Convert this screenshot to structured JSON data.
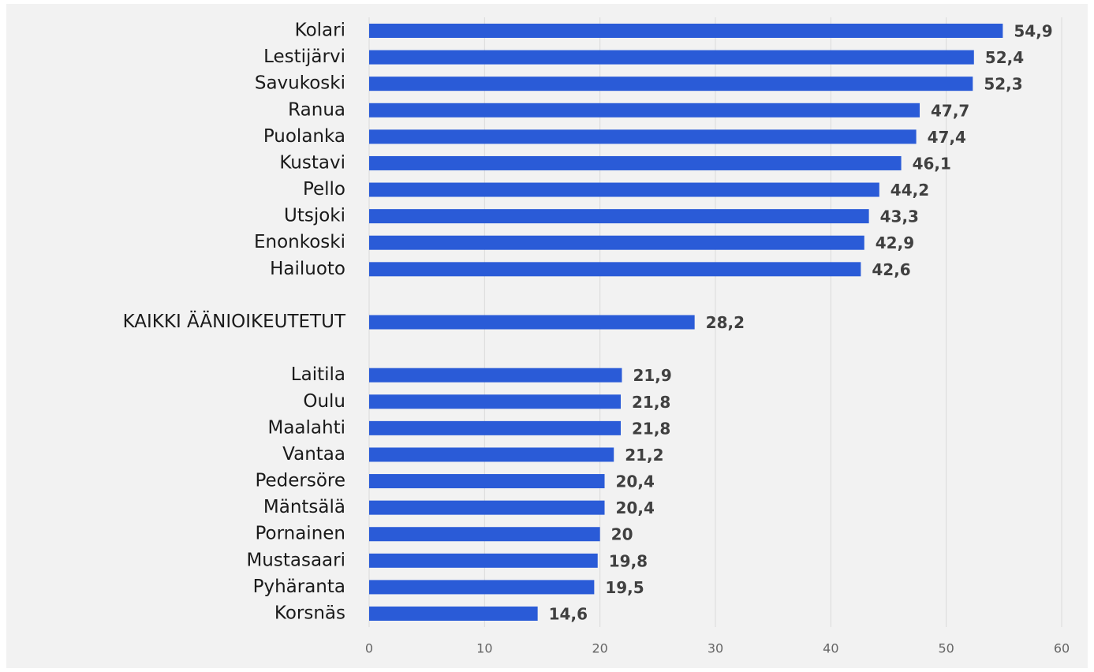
{
  "chart_data": {
    "type": "bar",
    "orientation": "horizontal",
    "categories": [
      "Kolari",
      "Lestijärvi",
      "Savukoski",
      "Ranua",
      "Puolanka",
      "Kustavi",
      "Pello",
      "Utsjoki",
      "Enonkoski",
      "Hailuoto",
      null,
      "KAIKKI ÄÄNIOIKEUTETUT",
      null,
      "Laitila",
      "Oulu",
      "Maalahti",
      "Vantaa",
      "Pedersöre",
      "Mäntsälä",
      "Pornainen",
      "Mustasaari",
      "Pyhäranta",
      "Korsnäs"
    ],
    "values": [
      54.9,
      52.4,
      52.3,
      47.7,
      47.4,
      46.1,
      44.2,
      43.3,
      42.9,
      42.6,
      null,
      28.2,
      null,
      21.9,
      21.8,
      21.8,
      21.2,
      20.4,
      20.4,
      20,
      19.8,
      19.5,
      14.6
    ],
    "value_labels": [
      "54,9",
      "52,4",
      "52,3",
      "47,7",
      "47,4",
      "46,1",
      "44,2",
      "43,3",
      "42,9",
      "42,6",
      null,
      "28,2",
      null,
      "21,9",
      "21,8",
      "21,8",
      "21,2",
      "20,4",
      "20,4",
      "20",
      "19,8",
      "19,5",
      "14,6"
    ],
    "color": "#2a5bd7",
    "xlim": [
      0,
      60
    ],
    "xticks": [
      0,
      10,
      20,
      30,
      40,
      50,
      60
    ],
    "grid": true
  }
}
